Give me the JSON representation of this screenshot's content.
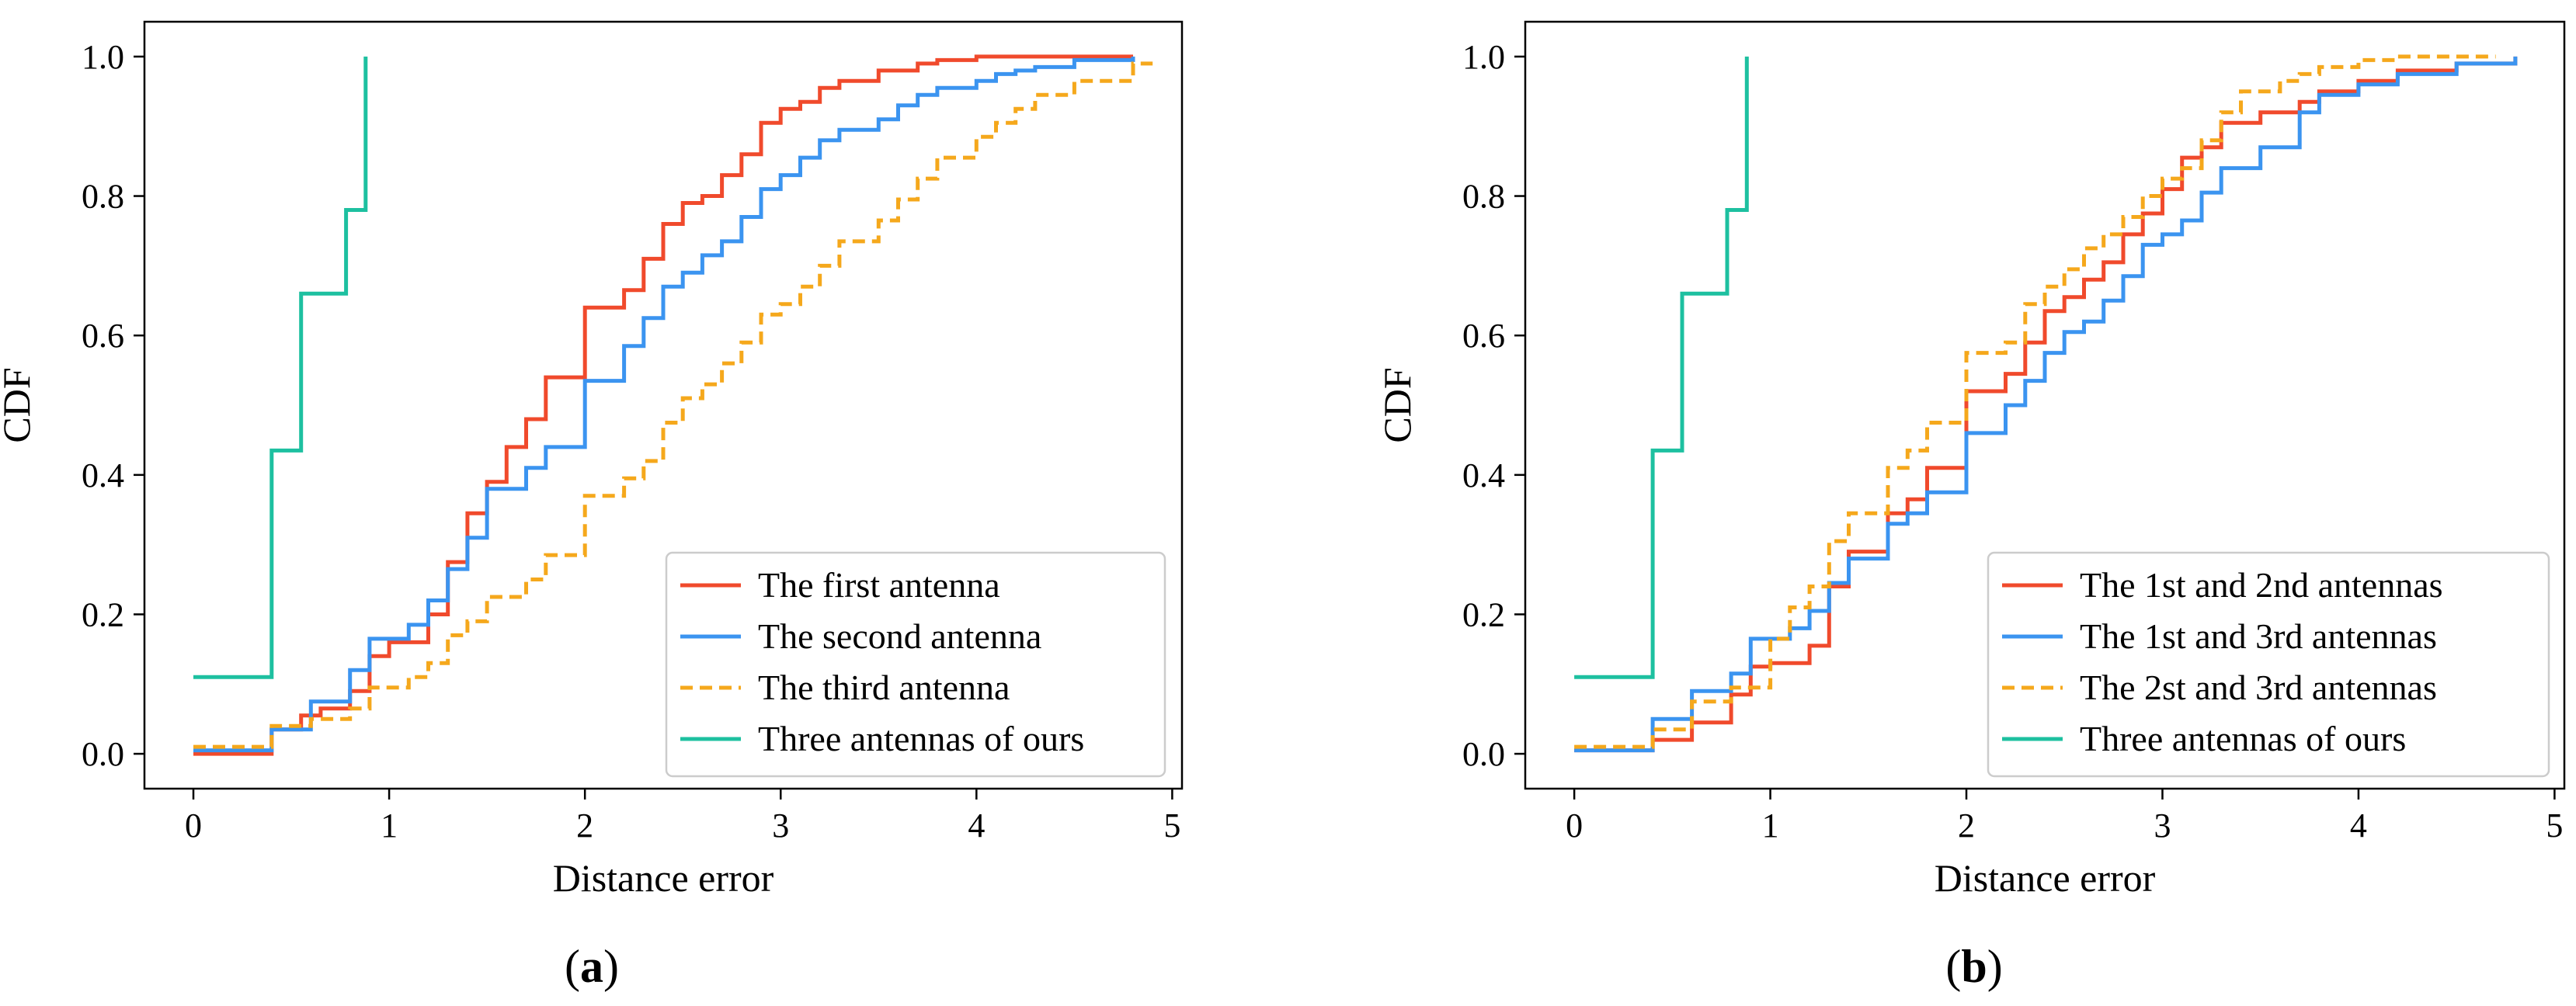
{
  "chart_data": [
    {
      "type": "line",
      "panel_label": "(a)",
      "panel_letter": "a",
      "xlabel": "Distance error",
      "ylabel": "CDF",
      "xlim": [
        -0.25,
        5.05
      ],
      "ylim": [
        -0.05,
        1.05
      ],
      "xticks": [
        0,
        1,
        2,
        3,
        4,
        5
      ],
      "xtick_labels": [
        "0",
        "1",
        "2",
        "3",
        "4",
        "5"
      ],
      "yticks": [
        0.0,
        0.2,
        0.4,
        0.6,
        0.8,
        1.0
      ],
      "ytick_labels": [
        "0.0",
        "0.2",
        "0.4",
        "0.6",
        "0.8",
        "1.0"
      ],
      "grid": false,
      "legend_position": "lower-right",
      "series": [
        {
          "name": "The first antenna",
          "color": "#f04a2c",
          "dash": "solid",
          "step_x": [
            0,
            0.4,
            0.55,
            0.65,
            0.8,
            0.9,
            1.0,
            1.2,
            1.3,
            1.4,
            1.5,
            1.6,
            1.7,
            1.8,
            2.0,
            2.2,
            2.3,
            2.4,
            2.5,
            2.6,
            2.7,
            2.8,
            2.9,
            3.0,
            3.1,
            3.2,
            3.3,
            3.5,
            3.7,
            3.8,
            4.0,
            4.2,
            4.5,
            4.8
          ],
          "step_y": [
            0.0,
            0.035,
            0.055,
            0.065,
            0.09,
            0.14,
            0.16,
            0.2,
            0.275,
            0.345,
            0.39,
            0.44,
            0.48,
            0.54,
            0.64,
            0.665,
            0.71,
            0.76,
            0.79,
            0.8,
            0.83,
            0.86,
            0.905,
            0.925,
            0.935,
            0.955,
            0.965,
            0.98,
            0.99,
            0.995,
            1.0,
            1.0,
            1.0,
            1.0
          ]
        },
        {
          "name": "The second antenna",
          "color": "#3b94f0",
          "dash": "solid",
          "step_x": [
            0,
            0.4,
            0.6,
            0.8,
            0.9,
            1.1,
            1.2,
            1.3,
            1.4,
            1.5,
            1.7,
            1.8,
            2.0,
            2.2,
            2.3,
            2.4,
            2.5,
            2.6,
            2.7,
            2.8,
            2.9,
            3.0,
            3.1,
            3.2,
            3.3,
            3.5,
            3.6,
            3.7,
            3.8,
            4.0,
            4.1,
            4.2,
            4.3,
            4.5,
            4.8
          ],
          "step_y": [
            0.005,
            0.035,
            0.075,
            0.12,
            0.165,
            0.185,
            0.22,
            0.265,
            0.31,
            0.38,
            0.41,
            0.44,
            0.535,
            0.585,
            0.625,
            0.67,
            0.69,
            0.715,
            0.735,
            0.77,
            0.81,
            0.83,
            0.855,
            0.88,
            0.895,
            0.91,
            0.93,
            0.945,
            0.955,
            0.965,
            0.975,
            0.98,
            0.985,
            0.995,
            1.0
          ]
        },
        {
          "name": "The third antenna",
          "color": "#f5a81c",
          "dash": "dashed",
          "step_x": [
            0,
            0.4,
            0.6,
            0.8,
            0.9,
            1.1,
            1.2,
            1.3,
            1.4,
            1.5,
            1.7,
            1.8,
            2.0,
            2.2,
            2.3,
            2.4,
            2.5,
            2.6,
            2.7,
            2.8,
            2.9,
            3.0,
            3.1,
            3.2,
            3.3,
            3.5,
            3.6,
            3.7,
            3.8,
            4.0,
            4.1,
            4.2,
            4.3,
            4.5,
            4.8,
            4.9
          ],
          "step_y": [
            0.01,
            0.04,
            0.05,
            0.065,
            0.095,
            0.11,
            0.13,
            0.17,
            0.19,
            0.225,
            0.25,
            0.285,
            0.37,
            0.395,
            0.42,
            0.475,
            0.51,
            0.53,
            0.56,
            0.59,
            0.63,
            0.645,
            0.67,
            0.7,
            0.735,
            0.765,
            0.795,
            0.825,
            0.855,
            0.885,
            0.905,
            0.925,
            0.945,
            0.965,
            0.99,
            0.99
          ]
        },
        {
          "name": "Three antennas of ours",
          "color": "#1dc0a0",
          "dash": "solid",
          "step_x": [
            0,
            0.4,
            0.55,
            0.78,
            0.88,
            0.88
          ],
          "step_y": [
            0.11,
            0.435,
            0.66,
            0.78,
            1.0,
            1.0
          ]
        }
      ]
    },
    {
      "type": "line",
      "panel_label": "(b)",
      "panel_letter": "b",
      "xlabel": "Distance error",
      "ylabel": "CDF",
      "xlim": [
        -0.25,
        5.05
      ],
      "ylim": [
        -0.05,
        1.05
      ],
      "xticks": [
        0,
        1,
        2,
        3,
        4,
        5
      ],
      "xtick_labels": [
        "0",
        "1",
        "2",
        "3",
        "4",
        "5"
      ],
      "yticks": [
        0.0,
        0.2,
        0.4,
        0.6,
        0.8,
        1.0
      ],
      "ytick_labels": [
        "0.0",
        "0.2",
        "0.4",
        "0.6",
        "0.8",
        "1.0"
      ],
      "grid": false,
      "legend_position": "lower-right",
      "series": [
        {
          "name": "The 1st and 2nd antennas",
          "color": "#f04a2c",
          "dash": "solid",
          "step_x": [
            0,
            0.4,
            0.6,
            0.8,
            0.9,
            1.0,
            1.2,
            1.3,
            1.4,
            1.6,
            1.7,
            1.8,
            2.0,
            2.2,
            2.3,
            2.4,
            2.5,
            2.6,
            2.7,
            2.8,
            2.9,
            3.0,
            3.1,
            3.2,
            3.3,
            3.5,
            3.7,
            3.8,
            4.0,
            4.2,
            4.5,
            4.8
          ],
          "step_y": [
            0.005,
            0.02,
            0.045,
            0.085,
            0.125,
            0.13,
            0.155,
            0.24,
            0.29,
            0.345,
            0.365,
            0.41,
            0.52,
            0.545,
            0.59,
            0.635,
            0.655,
            0.68,
            0.705,
            0.745,
            0.775,
            0.81,
            0.855,
            0.87,
            0.905,
            0.92,
            0.935,
            0.95,
            0.965,
            0.98,
            0.99,
            1.0
          ]
        },
        {
          "name": "The 1st and 3rd antennas",
          "color": "#3b94f0",
          "dash": "solid",
          "step_x": [
            0,
            0.4,
            0.6,
            0.8,
            0.9,
            1.1,
            1.2,
            1.3,
            1.4,
            1.6,
            1.7,
            1.8,
            2.0,
            2.2,
            2.3,
            2.4,
            2.5,
            2.6,
            2.7,
            2.8,
            2.9,
            3.0,
            3.1,
            3.2,
            3.3,
            3.5,
            3.7,
            3.8,
            4.0,
            4.2,
            4.5,
            4.8
          ],
          "step_y": [
            0.005,
            0.05,
            0.09,
            0.115,
            0.165,
            0.18,
            0.205,
            0.245,
            0.28,
            0.33,
            0.345,
            0.375,
            0.46,
            0.5,
            0.535,
            0.575,
            0.605,
            0.62,
            0.65,
            0.685,
            0.73,
            0.745,
            0.765,
            0.805,
            0.84,
            0.87,
            0.92,
            0.945,
            0.96,
            0.975,
            0.99,
            1.0
          ]
        },
        {
          "name": "The 2st and 3rd antennas",
          "color": "#f5a81c",
          "dash": "dashed",
          "step_x": [
            0,
            0.4,
            0.6,
            0.8,
            1.0,
            1.1,
            1.2,
            1.3,
            1.4,
            1.6,
            1.7,
            1.8,
            2.0,
            2.2,
            2.3,
            2.4,
            2.5,
            2.6,
            2.7,
            2.8,
            2.9,
            3.0,
            3.1,
            3.2,
            3.3,
            3.4,
            3.6,
            3.7,
            3.8,
            4.0,
            4.2,
            4.5,
            4.7
          ],
          "step_y": [
            0.01,
            0.035,
            0.075,
            0.095,
            0.165,
            0.21,
            0.24,
            0.305,
            0.345,
            0.41,
            0.435,
            0.475,
            0.575,
            0.59,
            0.645,
            0.67,
            0.695,
            0.725,
            0.745,
            0.77,
            0.8,
            0.825,
            0.84,
            0.88,
            0.92,
            0.95,
            0.965,
            0.975,
            0.985,
            0.995,
            1.0,
            1.0,
            1.0
          ]
        },
        {
          "name": "Three antennas of ours",
          "color": "#1dc0a0",
          "dash": "solid",
          "step_x": [
            0,
            0.4,
            0.55,
            0.78,
            0.88,
            0.88
          ],
          "step_y": [
            0.11,
            0.435,
            0.66,
            0.78,
            1.0,
            1.0
          ]
        }
      ]
    }
  ]
}
